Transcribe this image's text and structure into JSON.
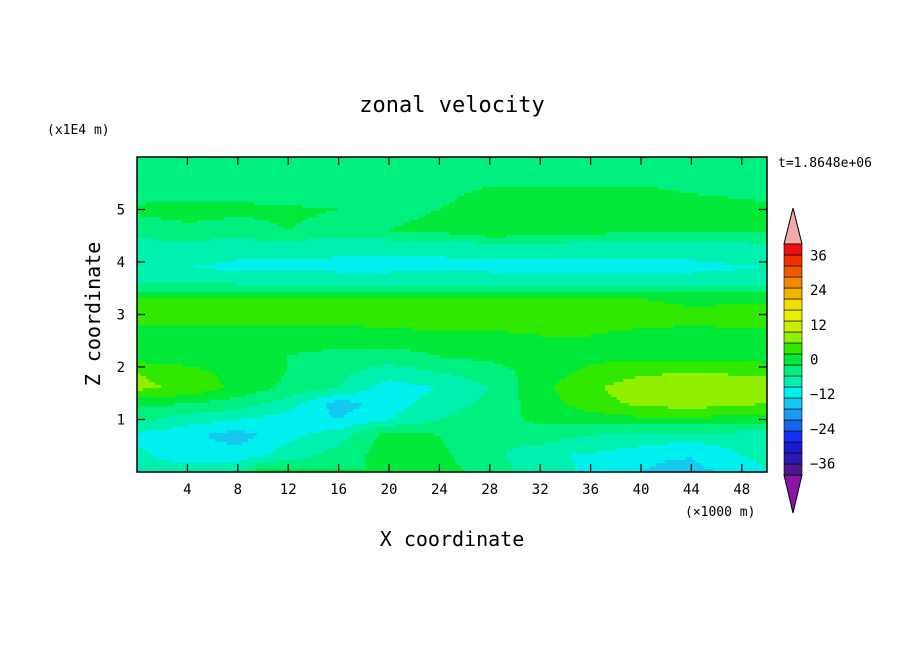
{
  "chart_data": {
    "type": "heatmap",
    "title": "zonal velocity",
    "time_label": "t=1.8648e+06",
    "xlabel": "X coordinate",
    "ylabel": "Z coordinate",
    "x_unit": "(×1000 m)",
    "y_unit": "(x1E4 m)",
    "xlim": [
      0,
      50
    ],
    "ylim": [
      0,
      6
    ],
    "x_ticks": [
      {
        "value": 4,
        "label": "4"
      },
      {
        "value": 8,
        "label": "8"
      },
      {
        "value": 12,
        "label": "12"
      },
      {
        "value": 16,
        "label": "16"
      },
      {
        "value": 20,
        "label": "20"
      },
      {
        "value": 24,
        "label": "24"
      },
      {
        "value": 28,
        "label": "28"
      },
      {
        "value": 32,
        "label": "32"
      },
      {
        "value": 36,
        "label": "36"
      },
      {
        "value": 40,
        "label": "40"
      },
      {
        "value": 44,
        "label": "44"
      },
      {
        "value": 48,
        "label": "48"
      }
    ],
    "y_ticks": [
      {
        "value": 1,
        "label": "1"
      },
      {
        "value": 2,
        "label": "2"
      },
      {
        "value": 3,
        "label": "3"
      },
      {
        "value": 4,
        "label": "4"
      },
      {
        "value": 5,
        "label": "5"
      }
    ],
    "colorbar": {
      "min": -40,
      "max": 40,
      "step": 4,
      "colors": [
        "#4b1a8a",
        "#2a1ab0",
        "#1a1ad0",
        "#1430f0",
        "#1866f0",
        "#1a9af0",
        "#14c8f0",
        "#00f0f0",
        "#00f0b0",
        "#00f080",
        "#00e838",
        "#30e800",
        "#90f000",
        "#c8f000",
        "#e8f000",
        "#f0e000",
        "#f0b400",
        "#f08800",
        "#f05800",
        "#f03000",
        "#e81010"
      ],
      "under_color": "#8c14a8",
      "over_color": "#f4aaaa",
      "tick_labels": [
        {
          "value": 36,
          "label": "36"
        },
        {
          "value": 24,
          "label": "24"
        },
        {
          "value": 12,
          "label": "12"
        },
        {
          "value": 0,
          "label": "0"
        },
        {
          "value": -12,
          "label": "−12"
        },
        {
          "value": -24,
          "label": "−24"
        },
        {
          "value": -36,
          "label": "−36"
        }
      ]
    },
    "field_bands": [
      {
        "z": 0.0,
        "points": [
          [
            0,
            -6
          ],
          [
            4,
            -6
          ],
          [
            8,
            -4
          ],
          [
            10,
            2
          ],
          [
            14,
            1
          ],
          [
            18,
            0
          ],
          [
            22,
            4
          ],
          [
            28,
            -2
          ],
          [
            32,
            -6
          ],
          [
            38,
            -10
          ],
          [
            42,
            -14
          ],
          [
            46,
            -12
          ],
          [
            50,
            -8
          ]
        ]
      },
      {
        "z": 0.3,
        "points": [
          [
            0,
            -7
          ],
          [
            4,
            -10
          ],
          [
            8,
            -10
          ],
          [
            12,
            -6
          ],
          [
            16,
            -2
          ],
          [
            20,
            2
          ],
          [
            24,
            1
          ],
          [
            28,
            -3
          ],
          [
            34,
            -8
          ],
          [
            40,
            -10
          ],
          [
            44,
            -12
          ],
          [
            48,
            -8
          ],
          [
            50,
            -7
          ]
        ]
      },
      {
        "z": 0.7,
        "points": [
          [
            0,
            -9
          ],
          [
            4,
            -11
          ],
          [
            8,
            -14
          ],
          [
            12,
            -9
          ],
          [
            16,
            -6
          ],
          [
            20,
            2
          ],
          [
            24,
            0
          ],
          [
            28,
            -4
          ],
          [
            32,
            -2
          ],
          [
            36,
            -4
          ],
          [
            40,
            -6
          ],
          [
            44,
            -6
          ],
          [
            50,
            -6
          ]
        ]
      },
      {
        "z": 1.0,
        "points": [
          [
            0,
            -3
          ],
          [
            4,
            -6
          ],
          [
            8,
            -8
          ],
          [
            12,
            -10
          ],
          [
            16,
            -12
          ],
          [
            20,
            -8
          ],
          [
            24,
            -4
          ],
          [
            28,
            -2
          ],
          [
            32,
            1
          ],
          [
            36,
            2
          ],
          [
            40,
            3
          ],
          [
            44,
            3
          ],
          [
            50,
            2
          ]
        ]
      },
      {
        "z": 1.3,
        "points": [
          [
            0,
            1
          ],
          [
            4,
            0
          ],
          [
            8,
            -2
          ],
          [
            12,
            -6
          ],
          [
            16,
            -14
          ],
          [
            20,
            -10
          ],
          [
            24,
            -6
          ],
          [
            28,
            -3
          ],
          [
            32,
            2
          ],
          [
            36,
            6
          ],
          [
            40,
            9
          ],
          [
            44,
            10
          ],
          [
            50,
            8
          ]
        ]
      },
      {
        "z": 1.6,
        "points": [
          [
            0,
            9
          ],
          [
            4,
            7
          ],
          [
            8,
            3
          ],
          [
            12,
            -1
          ],
          [
            16,
            -4
          ],
          [
            20,
            -10
          ],
          [
            24,
            -8
          ],
          [
            28,
            -4
          ],
          [
            32,
            3
          ],
          [
            36,
            7
          ],
          [
            40,
            11
          ],
          [
            44,
            12
          ],
          [
            50,
            10
          ]
        ]
      },
      {
        "z": 1.9,
        "points": [
          [
            0,
            8
          ],
          [
            4,
            6
          ],
          [
            8,
            2
          ],
          [
            12,
            0
          ],
          [
            16,
            -3
          ],
          [
            20,
            -6
          ],
          [
            24,
            -4
          ],
          [
            28,
            -2
          ],
          [
            32,
            2
          ],
          [
            36,
            5
          ],
          [
            40,
            7
          ],
          [
            44,
            8
          ],
          [
            50,
            7
          ]
        ]
      },
      {
        "z": 2.2,
        "points": [
          [
            0,
            2
          ],
          [
            4,
            1
          ],
          [
            8,
            0
          ],
          [
            12,
            0
          ],
          [
            16,
            -1
          ],
          [
            20,
            -2
          ],
          [
            24,
            0
          ],
          [
            28,
            1
          ],
          [
            32,
            2
          ],
          [
            36,
            3
          ],
          [
            40,
            3
          ],
          [
            44,
            3
          ],
          [
            50,
            2
          ]
        ]
      },
      {
        "z": 2.6,
        "points": [
          [
            0,
            2
          ],
          [
            4,
            3
          ],
          [
            8,
            2
          ],
          [
            12,
            1
          ],
          [
            16,
            2
          ],
          [
            20,
            3
          ],
          [
            24,
            3
          ],
          [
            28,
            3
          ],
          [
            32,
            4
          ],
          [
            36,
            4
          ],
          [
            40,
            3
          ],
          [
            44,
            3
          ],
          [
            50,
            3
          ]
        ]
      },
      {
        "z": 3.0,
        "points": [
          [
            0,
            6
          ],
          [
            4,
            5
          ],
          [
            8,
            6
          ],
          [
            12,
            7
          ],
          [
            16,
            6
          ],
          [
            20,
            6
          ],
          [
            24,
            7
          ],
          [
            28,
            8
          ],
          [
            32,
            7
          ],
          [
            36,
            6
          ],
          [
            40,
            6
          ],
          [
            44,
            5
          ],
          [
            50,
            6
          ]
        ]
      },
      {
        "z": 3.3,
        "points": [
          [
            0,
            4
          ],
          [
            4,
            4
          ],
          [
            8,
            5
          ],
          [
            12,
            5
          ],
          [
            16,
            5
          ],
          [
            20,
            4
          ],
          [
            24,
            4
          ],
          [
            28,
            5
          ],
          [
            32,
            5
          ],
          [
            36,
            4
          ],
          [
            40,
            4
          ],
          [
            44,
            3
          ],
          [
            50,
            3
          ]
        ]
      },
      {
        "z": 3.6,
        "points": [
          [
            0,
            -4
          ],
          [
            4,
            -4
          ],
          [
            8,
            -5
          ],
          [
            12,
            -5
          ],
          [
            16,
            -6
          ],
          [
            20,
            -6
          ],
          [
            24,
            -5
          ],
          [
            28,
            -6
          ],
          [
            32,
            -6
          ],
          [
            36,
            -6
          ],
          [
            40,
            -6
          ],
          [
            44,
            -6
          ],
          [
            50,
            -5
          ]
        ]
      },
      {
        "z": 3.9,
        "points": [
          [
            0,
            -8
          ],
          [
            4,
            -8
          ],
          [
            8,
            -9
          ],
          [
            12,
            -9
          ],
          [
            16,
            -9
          ],
          [
            20,
            -9
          ],
          [
            24,
            -9
          ],
          [
            28,
            -9
          ],
          [
            32,
            -9
          ],
          [
            36,
            -9
          ],
          [
            40,
            -9
          ],
          [
            44,
            -9
          ],
          [
            50,
            -8
          ]
        ]
      },
      {
        "z": 4.3,
        "points": [
          [
            0,
            -5
          ],
          [
            4,
            -5
          ],
          [
            8,
            -6
          ],
          [
            12,
            -6
          ],
          [
            16,
            -7
          ],
          [
            20,
            -7
          ],
          [
            24,
            -7
          ],
          [
            28,
            -6
          ],
          [
            32,
            -6
          ],
          [
            36,
            -6
          ],
          [
            40,
            -6
          ],
          [
            44,
            -6
          ],
          [
            50,
            -5
          ]
        ]
      },
      {
        "z": 4.6,
        "points": [
          [
            0,
            -3
          ],
          [
            4,
            -2
          ],
          [
            8,
            -2
          ],
          [
            12,
            0
          ],
          [
            16,
            -2
          ],
          [
            20,
            0
          ],
          [
            24,
            1
          ],
          [
            28,
            4
          ],
          [
            32,
            3
          ],
          [
            36,
            2
          ],
          [
            40,
            0
          ],
          [
            44,
            0
          ],
          [
            50,
            0
          ]
        ]
      },
      {
        "z": 5.0,
        "points": [
          [
            0,
            1
          ],
          [
            4,
            3
          ],
          [
            8,
            1
          ],
          [
            12,
            1
          ],
          [
            16,
            0
          ],
          [
            20,
            -1
          ],
          [
            24,
            0
          ],
          [
            28,
            2
          ],
          [
            32,
            3
          ],
          [
            36,
            3
          ],
          [
            40,
            3
          ],
          [
            44,
            2
          ],
          [
            50,
            1
          ]
        ]
      },
      {
        "z": 5.3,
        "points": [
          [
            0,
            -2
          ],
          [
            4,
            -3
          ],
          [
            8,
            -1
          ],
          [
            12,
            -3
          ],
          [
            16,
            -3
          ],
          [
            20,
            -3
          ],
          [
            24,
            -1
          ],
          [
            28,
            1
          ],
          [
            32,
            1
          ],
          [
            36,
            1
          ],
          [
            40,
            1
          ],
          [
            44,
            0
          ],
          [
            50,
            -1
          ]
        ]
      },
      {
        "z": 5.7,
        "points": [
          [
            0,
            -4
          ],
          [
            4,
            -4
          ],
          [
            8,
            -4
          ],
          [
            12,
            -4
          ],
          [
            16,
            -4
          ],
          [
            20,
            -4
          ],
          [
            24,
            -3
          ],
          [
            28,
            -2
          ],
          [
            32,
            -2
          ],
          [
            36,
            -2
          ],
          [
            40,
            -2
          ],
          [
            44,
            -2
          ],
          [
            50,
            -2
          ]
        ]
      },
      {
        "z": 6.0,
        "points": [
          [
            0,
            -4
          ],
          [
            4,
            -4
          ],
          [
            8,
            -4
          ],
          [
            12,
            -4
          ],
          [
            16,
            -4
          ],
          [
            20,
            -4
          ],
          [
            24,
            -3
          ],
          [
            28,
            -2
          ],
          [
            32,
            -2
          ],
          [
            36,
            -2
          ],
          [
            40,
            -2
          ],
          [
            44,
            -2
          ],
          [
            50,
            -2
          ]
        ]
      }
    ]
  }
}
